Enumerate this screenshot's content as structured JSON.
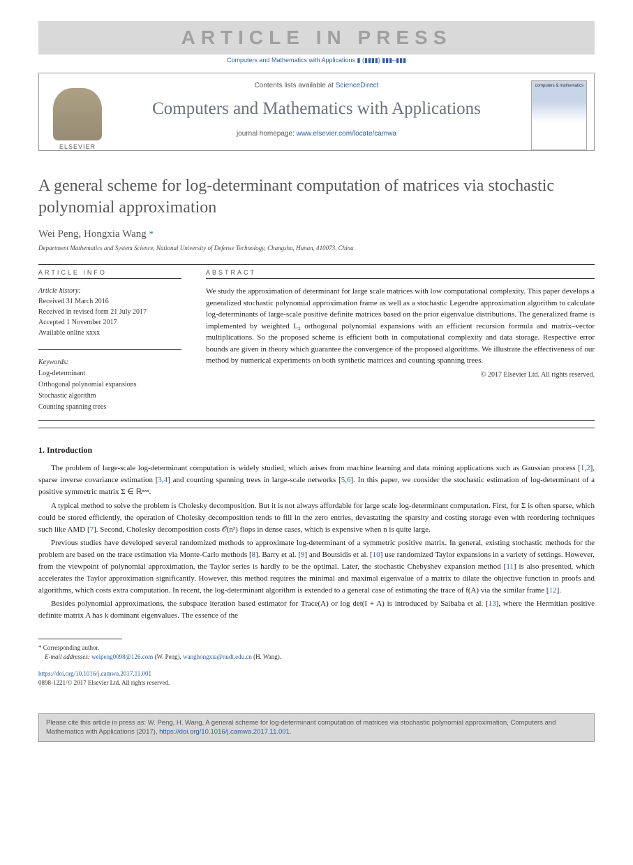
{
  "banner": {
    "article_in_press": "ARTICLE IN PRESS",
    "journal_ref": "Computers and Mathematics with Applications ▮ (▮▮▮▮) ▮▮▮–▮▮▮"
  },
  "header": {
    "contents_prefix": "Contents lists available at ",
    "sciencedirect": "ScienceDirect",
    "journal_title": "Computers and Mathematics with Applications",
    "homepage_prefix": "journal homepage: ",
    "homepage_url": "www.elsevier.com/locate/camwa",
    "elsevier_label": "ELSEVIER",
    "cover_text": "computers & mathematics"
  },
  "title": "A general scheme for log-determinant computation of matrices via stochastic polynomial approximation",
  "authors": {
    "names": "Wei Peng, Hongxia Wang",
    "mark": "*"
  },
  "affiliation": "Department Mathematics and System Science, National University of Defense Technology, Changsha, Hunan, 410073, China",
  "article_info": {
    "label": "ARTICLE INFO",
    "history_label": "Article history:",
    "received": "Received 31 March 2016",
    "revised": "Received in revised form 21 July 2017",
    "accepted": "Accepted 1 November 2017",
    "online": "Available online xxxx",
    "keywords_label": "Keywords:",
    "kw1": "Log-determinant",
    "kw2": "Orthogonal polynomial expansions",
    "kw3": "Stochastic algorithm",
    "kw4": "Counting spanning trees"
  },
  "abstract": {
    "label": "ABSTRACT",
    "text": "We study the approximation of determinant for large scale matrices with low computational complexity. This paper develops a generalized stochastic polynomial approximation frame as well as a stochastic Legendre approximation algorithm to calculate log-determinants of large-scale positive definite matrices based on the prior eigenvalue distributions. The generalized frame is implemented by weighted L₂ orthogonal polynomial expansions with an efficient recursion formula and matrix–vector multiplications. So the proposed scheme is efficient both in computational complexity and data storage. Respective error bounds are given in theory which guarantee the convergence of the proposed algorithms. We illustrate the effectiveness of our method by numerical experiments on both synthetic matrices and counting spanning trees.",
    "copyright": "© 2017 Elsevier Ltd. All rights reserved."
  },
  "sections": {
    "intro_heading": "1. Introduction",
    "p1a": "The problem of large-scale log-determinant computation is widely studied, which arises from machine learning and data mining applications such as Gaussian process [",
    "p1b": "], sparse inverse covariance estimation [",
    "p1c": "] and counting spanning trees in large-scale networks [",
    "p1d": "]. In this paper, we consider the stochastic estimation of log-determinant of a positive symmetric matrix Σ ∈ ℝⁿˣⁿ.",
    "p2a": "A typical method to solve the problem is Cholesky decomposition. But it is not always affordable for large scale log-determinant computation. First, for Σ is often sparse, which could be stored efficiently, the operation of Cholesky decomposition tends to fill in the zero entries, devastating the sparsity and costing storage even with reordering techniques such like AMD [",
    "p2b": "]. Second, Cholesky decomposition costs 𝒪(n³) flops in dense cases, which is expensive when n is quite large.",
    "p3a": "Previous studies have developed several randomized methods to approximate log-determinant of a symmetric positive matrix. In general, existing stochastic methods for the problem  are based on the trace estimation via Monte-Carlo methods [",
    "p3b": "]. Barry et al. [",
    "p3c": "] and Boutsidis et al. [",
    "p3d": "] use randomized Taylor expansions in a variety of settings. However, from the viewpoint of polynomial approximation, the Taylor series is hardly to be the optimal. Later, the stochastic Chebyshev expansion method [",
    "p3e": "] is also presented, which accelerates the Taylor approximation significantly. However, this method requires the minimal and maximal eigenvalue of a matrix to dilate the objective function in proofs and algorithms, which costs extra computation. In recent, the log-determinant algorithm is extended to a general case of estimating the trace of f(A) via the similar frame [",
    "p3f": "].",
    "p4a": "Besides polynomial approximations, the subspace iteration based estimator for Trace(A) or log det(I + A) is introduced by Saibaba et al. [",
    "p4b": "], where the Hermitian positive definite matrix A has k dominant eigenvalues. The essence of the",
    "refs": {
      "r1": "1",
      "r2": "2",
      "r3": "3",
      "r4": "4",
      "r5": "5",
      "r6": "6",
      "r7": "7",
      "r8": "8",
      "r9": "9",
      "r10": "10",
      "r11": "11",
      "r12": "12",
      "r13": "13"
    }
  },
  "footnote": {
    "corresponding": "* Corresponding author.",
    "email_label": "E-mail addresses:",
    "email1": "weipeng0098@126.com",
    "email1_name": " (W. Peng), ",
    "email2": "wanghongxia@nudt.edu.cn",
    "email2_name": " (H. Wang)."
  },
  "doi": {
    "url": "https://doi.org/10.1016/j.camwa.2017.11.001",
    "issn_line": "0898-1221/© 2017 Elsevier Ltd. All rights reserved."
  },
  "citation": {
    "text_prefix": "Please cite this article in press as: W. Peng, H. Wang, A general scheme for log-determinant computation of matrices via stochastic polynomial approximation, Computers and Mathematics with Applications (2017), ",
    "url": "https://doi.org/10.1016/j.camwa.2017.11.001",
    "suffix": "."
  }
}
